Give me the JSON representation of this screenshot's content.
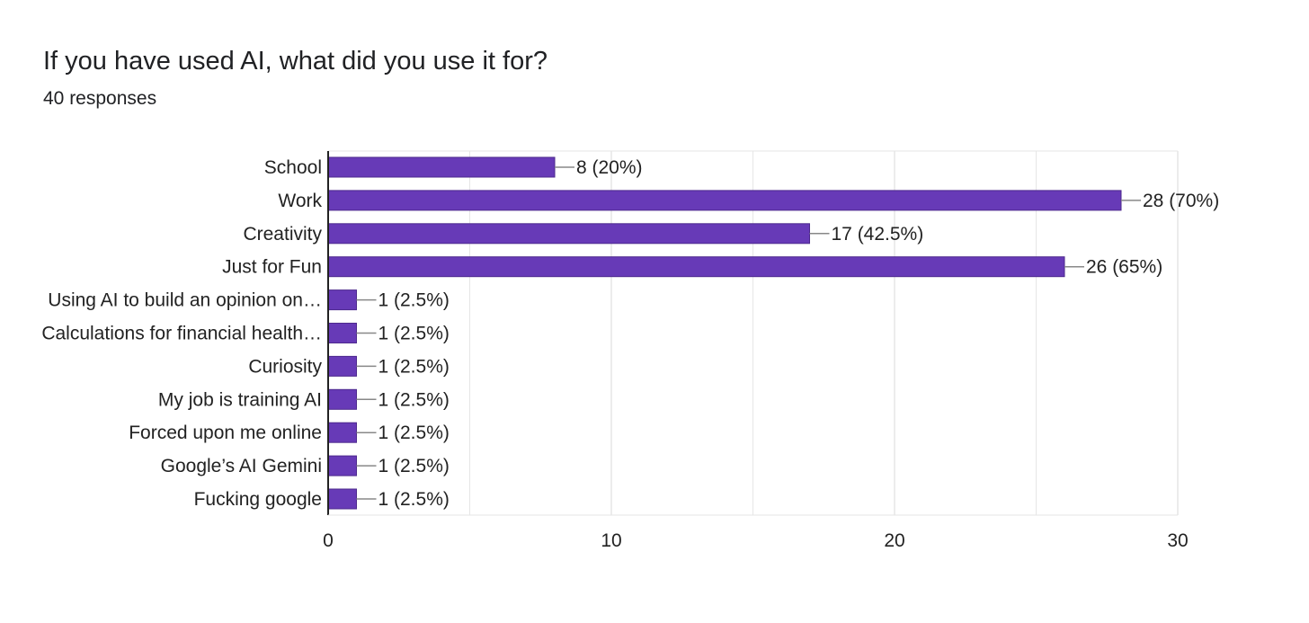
{
  "header": {
    "question": "If you have used AI, what did you use it for?",
    "responses": "40 responses"
  },
  "colors": {
    "bar": "#673ab7",
    "bar_border": "#4e2a8e",
    "grid": "#e6e6e6",
    "axis": "#222222",
    "leader": "#888888"
  },
  "chart_data": {
    "type": "bar",
    "orientation": "horizontal",
    "categories": [
      "School",
      "Work",
      "Creativity",
      "Just for Fun",
      "Using AI to build an opinion on…",
      "Calculations for financial health…",
      "Curiosity",
      "My job is training AI",
      "Forced upon me online",
      "Google’s AI Gemini",
      "Fucking google"
    ],
    "values": [
      8,
      28,
      17,
      26,
      1,
      1,
      1,
      1,
      1,
      1,
      1
    ],
    "data_labels": [
      "8 (20%)",
      "28 (70%)",
      "17 (42.5%)",
      "26 (65%)",
      "1 (2.5%)",
      "1 (2.5%)",
      "1 (2.5%)",
      "1 (2.5%)",
      "1 (2.5%)",
      "1 (2.5%)",
      "1 (2.5%)"
    ],
    "xlim": [
      0,
      30
    ],
    "x_ticks": [
      0,
      10,
      20,
      30
    ],
    "x_minor_grid": [
      5,
      15,
      25
    ],
    "grid": true,
    "legend": "none"
  }
}
